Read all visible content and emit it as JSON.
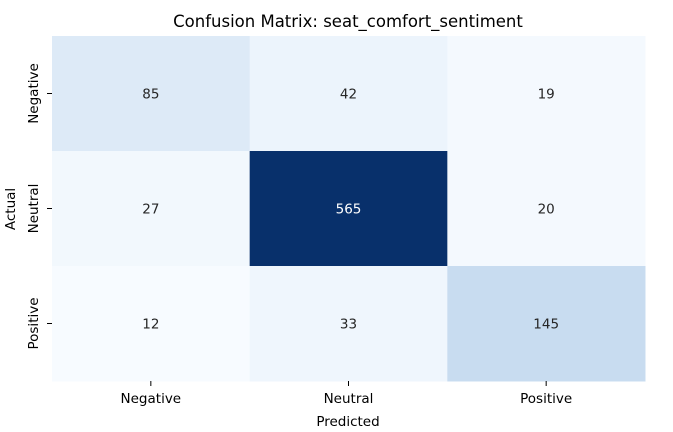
{
  "chart_data": {
    "type": "heatmap",
    "title": "Confusion Matrix: seat_comfort_sentiment",
    "xlabel": "Predicted",
    "ylabel": "Actual",
    "x_categories": [
      "Negative",
      "Neutral",
      "Positive"
    ],
    "y_categories": [
      "Negative",
      "Neutral",
      "Positive"
    ],
    "values": [
      [
        85,
        42,
        19
      ],
      [
        27,
        565,
        20
      ],
      [
        12,
        33,
        145
      ]
    ],
    "colormap": "Blues",
    "color_min": 12,
    "color_max": 565,
    "colorbar": false
  }
}
